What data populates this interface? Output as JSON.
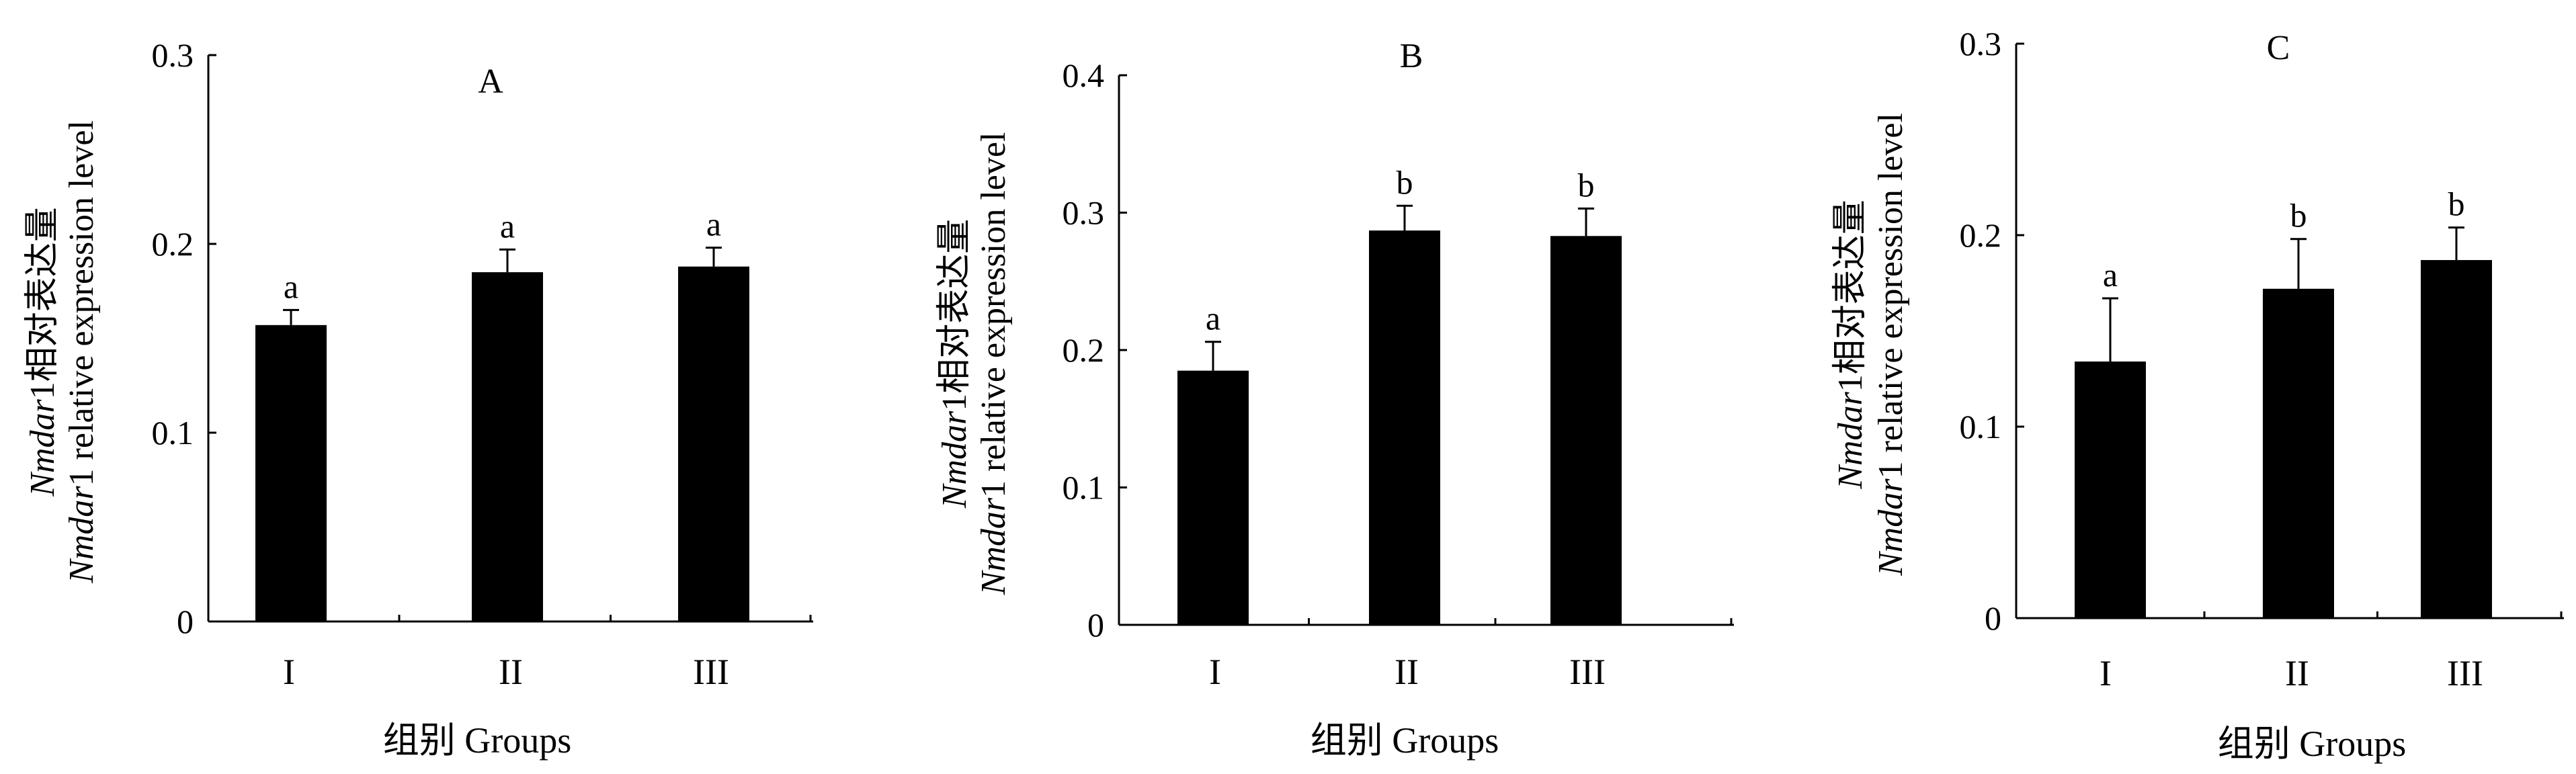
{
  "chart_data": [
    {
      "type": "bar",
      "panel_label": "A",
      "categories": [
        "I",
        "II",
        "III"
      ],
      "values": [
        0.157,
        0.185,
        0.188
      ],
      "errors": [
        0.008,
        0.012,
        0.01
      ],
      "significance": [
        "a",
        "a",
        "a"
      ],
      "ylim": [
        0,
        0.3
      ],
      "yticks": [
        "0",
        "0.1",
        "0.2",
        "0.3"
      ],
      "ylabel_line1_italic": "Nmdar",
      "ylabel_line1_rest": "1相对表达量",
      "ylabel_line2_italic": "Nmdar",
      "ylabel_line2_rest": "1 relative expression level",
      "xlabel": "组别 Groups"
    },
    {
      "type": "bar",
      "panel_label": "B",
      "categories": [
        "I",
        "II",
        "III"
      ],
      "values": [
        0.185,
        0.287,
        0.283
      ],
      "errors": [
        0.021,
        0.018,
        0.02
      ],
      "significance": [
        "a",
        "b",
        "b"
      ],
      "ylim": [
        0,
        0.4
      ],
      "yticks": [
        "0",
        "0.1",
        "0.2",
        "0.3",
        "0.4"
      ],
      "ylabel_line1_italic": "Nmdar",
      "ylabel_line1_rest": "1相对表达量",
      "ylabel_line2_italic": "Nmdar",
      "ylabel_line2_rest": "1 relative expression level",
      "xlabel": "组别 Groups"
    },
    {
      "type": "bar",
      "panel_label": "C",
      "categories": [
        "I",
        "II",
        "III"
      ],
      "values": [
        0.134,
        0.172,
        0.187
      ],
      "errors": [
        0.033,
        0.026,
        0.017
      ],
      "significance": [
        "a",
        "b",
        "b"
      ],
      "ylim": [
        0,
        0.3
      ],
      "yticks": [
        "0",
        "0.1",
        "0.2",
        "0.3"
      ],
      "ylabel_line1_italic": "Nmdar",
      "ylabel_line1_rest": "1相对表达量",
      "ylabel_line2_italic": "Nmdar",
      "ylabel_line2_rest": "1 relative expression level",
      "xlabel": "组别 Groups"
    }
  ],
  "style": {
    "bar_color": "#000000",
    "axis_color": "#000000",
    "background": "#ffffff"
  }
}
